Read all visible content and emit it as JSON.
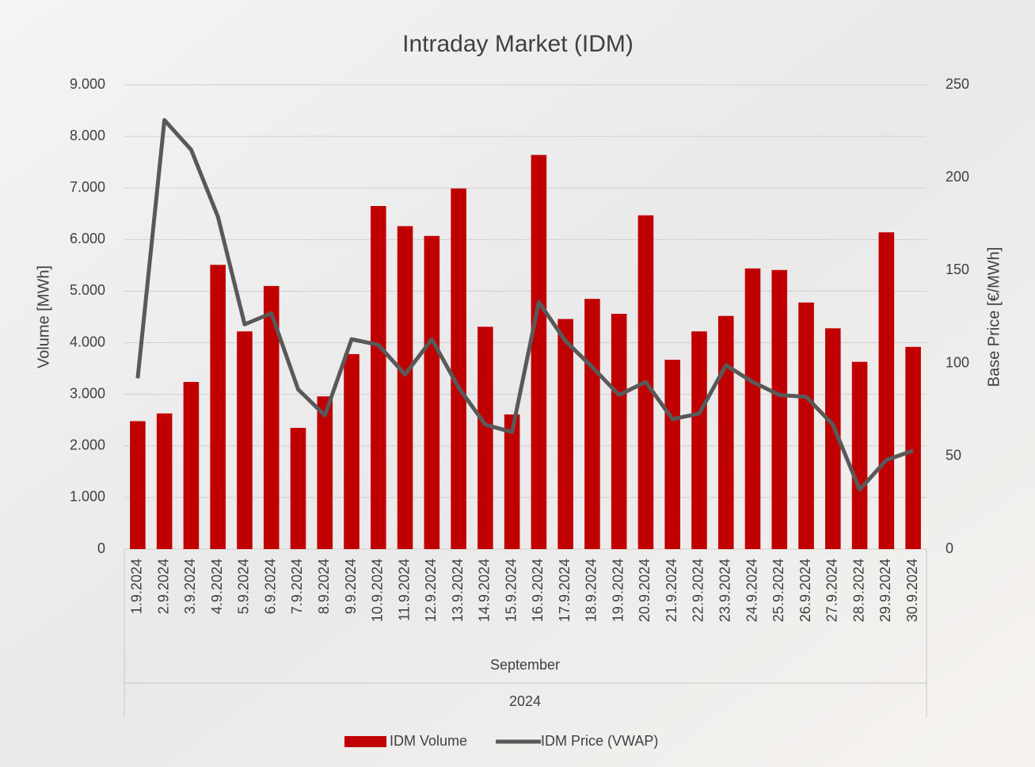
{
  "chart_data": {
    "type": "combo",
    "title": "Intraday Market (IDM)",
    "ylabel": "Volume [MWh]",
    "y2label": "Base Price [€/MWh]",
    "x_group_labels": [
      "September",
      "2024"
    ],
    "categories": [
      "1.9.2024",
      "2.9.2024",
      "3.9.2024",
      "4.9.2024",
      "5.9.2024",
      "6.9.2024",
      "7.9.2024",
      "8.9.2024",
      "9.9.2024",
      "10.9.2024",
      "11.9.2024",
      "12.9.2024",
      "13.9.2024",
      "14.9.2024",
      "15.9.2024",
      "16.9.2024",
      "17.9.2024",
      "18.9.2024",
      "19.9.2024",
      "20.9.2024",
      "21.9.2024",
      "22.9.2024",
      "23.9.2024",
      "24.9.2024",
      "25.9.2024",
      "26.9.2024",
      "27.9.2024",
      "28.9.2024",
      "29.9.2024",
      "30.9.2024"
    ],
    "series": [
      {
        "name": "IDM Volume",
        "type": "bar",
        "color": "#c00000",
        "values": [
          2480,
          2630,
          3240,
          5510,
          4220,
          5100,
          2350,
          2960,
          3780,
          6650,
          6260,
          6070,
          6990,
          4310,
          2610,
          7640,
          4460,
          4850,
          4560,
          6470,
          3670,
          4220,
          4520,
          5440,
          5410,
          4780,
          4280,
          3630,
          6140,
          3920
        ]
      },
      {
        "name": "IDM Price (VWAP)",
        "type": "line",
        "axis": "y2",
        "color": "#595959",
        "values": [
          92,
          231,
          215,
          179,
          121,
          127,
          86,
          72,
          113,
          110,
          94,
          113,
          87,
          67,
          63,
          133,
          112,
          98,
          83,
          90,
          70,
          73,
          99,
          90,
          83,
          82,
          67,
          32,
          48,
          53
        ]
      }
    ],
    "ylim": [
      0,
      9000
    ],
    "yticks": [
      0,
      {
        "value": 1000,
        "label": "1.000"
      },
      {
        "value": 2000,
        "label": "2.000"
      },
      {
        "value": 3000,
        "label": "3.000"
      },
      {
        "value": 4000,
        "label": "4.000"
      },
      {
        "value": 5000,
        "label": "5.000"
      },
      {
        "value": 6000,
        "label": "6.000"
      },
      {
        "value": 7000,
        "label": "7.000"
      },
      {
        "value": 8000,
        "label": "8.000"
      },
      {
        "value": 9000,
        "label": "9.000"
      }
    ],
    "y2lim": [
      0,
      250
    ],
    "y2ticks": [
      0,
      50,
      100,
      150,
      200,
      250
    ],
    "grid": true,
    "legend": "bottom"
  }
}
